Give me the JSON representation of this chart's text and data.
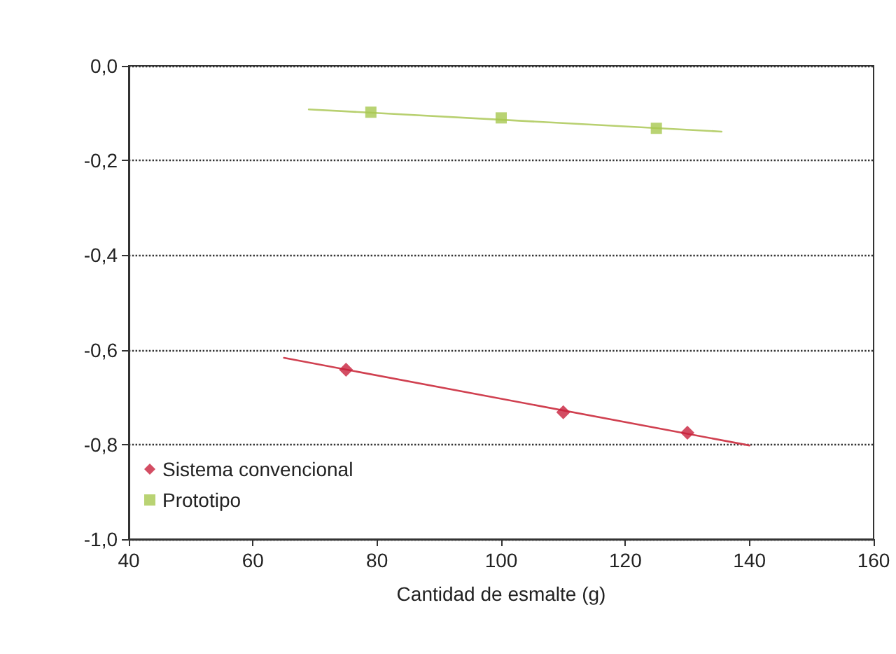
{
  "chart_data": {
    "type": "scatter",
    "xlabel": "Cantidad de esmalte (g)",
    "xlim": [
      40,
      160
    ],
    "xticks": [
      40,
      60,
      80,
      100,
      120,
      140,
      160
    ],
    "ylim": [
      -1.0,
      0.0
    ],
    "yticks": [
      {
        "value": -1.0,
        "label": "-1,0"
      },
      {
        "value": -0.8,
        "label": "-0,8"
      },
      {
        "value": -0.6,
        "label": "-0,6"
      },
      {
        "value": -0.4,
        "label": "-0,4"
      },
      {
        "value": -0.2,
        "label": "-0,2"
      },
      {
        "value": 0.0,
        "label": "0,0"
      }
    ],
    "grid": "y",
    "legend": "bottom left",
    "series": [
      {
        "name": "Sistema convencional",
        "marker": "diamond",
        "color": "#c8203c",
        "x": [
          75,
          110,
          130
        ],
        "values": [
          -0.642,
          -0.732,
          -0.775
        ]
      },
      {
        "name": "Prototipo",
        "marker": "square",
        "color": "#a8c850",
        "x": [
          79,
          100,
          125
        ],
        "values": [
          -0.098,
          -0.11,
          -0.132
        ]
      },
      {
        "type": "line",
        "marker": "none",
        "color": "#d04050",
        "x": [
          65,
          140
        ],
        "values": [
          -0.617,
          -0.802
        ]
      },
      {
        "type": "line",
        "marker": "none",
        "color": "#b8d070",
        "x": [
          69,
          135.5
        ],
        "values": [
          -0.092,
          -0.139
        ]
      }
    ]
  }
}
